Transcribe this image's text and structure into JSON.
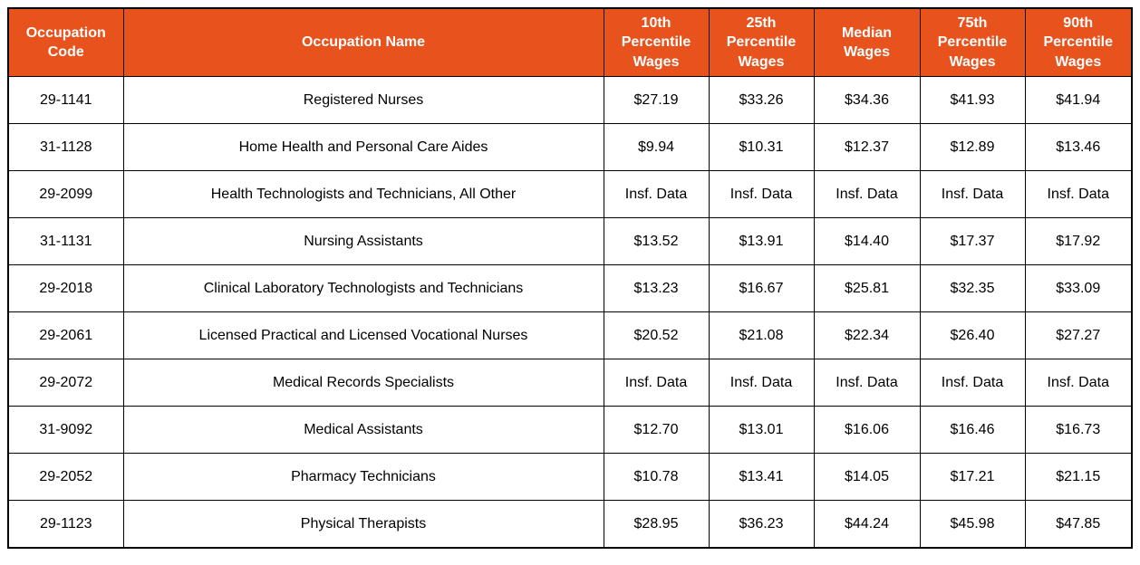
{
  "theme": {
    "header_bg": "#E8521D",
    "header_text": "#FFFFFF",
    "border_color": "#000000",
    "body_text": "#000000",
    "row_bg": "#FFFFFF"
  },
  "chart_data": {
    "type": "table",
    "columns": [
      "Occupation Code",
      "Occupation Name",
      "10th Percentile Wages",
      "25th Percentile Wages",
      "Median Wages",
      "75th Percentile Wages",
      "90th Percentile Wages"
    ],
    "rows": [
      {
        "code": "29-1141",
        "name": "Registered Nurses",
        "wages": [
          "$27.19",
          "$33.26",
          "$34.36",
          "$41.93",
          "$41.94"
        ]
      },
      {
        "code": "31-1128",
        "name": "Home Health and Personal Care Aides",
        "wages": [
          "$9.94",
          "$10.31",
          "$12.37",
          "$12.89",
          "$13.46"
        ]
      },
      {
        "code": "29-2099",
        "name": "Health Technologists and Technicians, All Other",
        "wages": [
          "Insf. Data",
          "Insf. Data",
          "Insf. Data",
          "Insf. Data",
          "Insf. Data"
        ]
      },
      {
        "code": "31-1131",
        "name": "Nursing Assistants",
        "wages": [
          "$13.52",
          "$13.91",
          "$14.40",
          "$17.37",
          "$17.92"
        ]
      },
      {
        "code": "29-2018",
        "name": "Clinical Laboratory Technologists and Technicians",
        "wages": [
          "$13.23",
          "$16.67",
          "$25.81",
          "$32.35",
          "$33.09"
        ]
      },
      {
        "code": "29-2061",
        "name": "Licensed Practical and Licensed Vocational Nurses",
        "wages": [
          "$20.52",
          "$21.08",
          "$22.34",
          "$26.40",
          "$27.27"
        ]
      },
      {
        "code": "29-2072",
        "name": "Medical Records Specialists",
        "wages": [
          "Insf. Data",
          "Insf. Data",
          "Insf. Data",
          "Insf. Data",
          "Insf. Data"
        ]
      },
      {
        "code": "31-9092",
        "name": "Medical Assistants",
        "wages": [
          "$12.70",
          "$13.01",
          "$16.06",
          "$16.46",
          "$16.73"
        ]
      },
      {
        "code": "29-2052",
        "name": "Pharmacy Technicians",
        "wages": [
          "$10.78",
          "$13.41",
          "$14.05",
          "$17.21",
          "$21.15"
        ]
      },
      {
        "code": "29-1123",
        "name": "Physical Therapists",
        "wages": [
          "$28.95",
          "$36.23",
          "$44.24",
          "$45.98",
          "$47.85"
        ]
      }
    ]
  }
}
